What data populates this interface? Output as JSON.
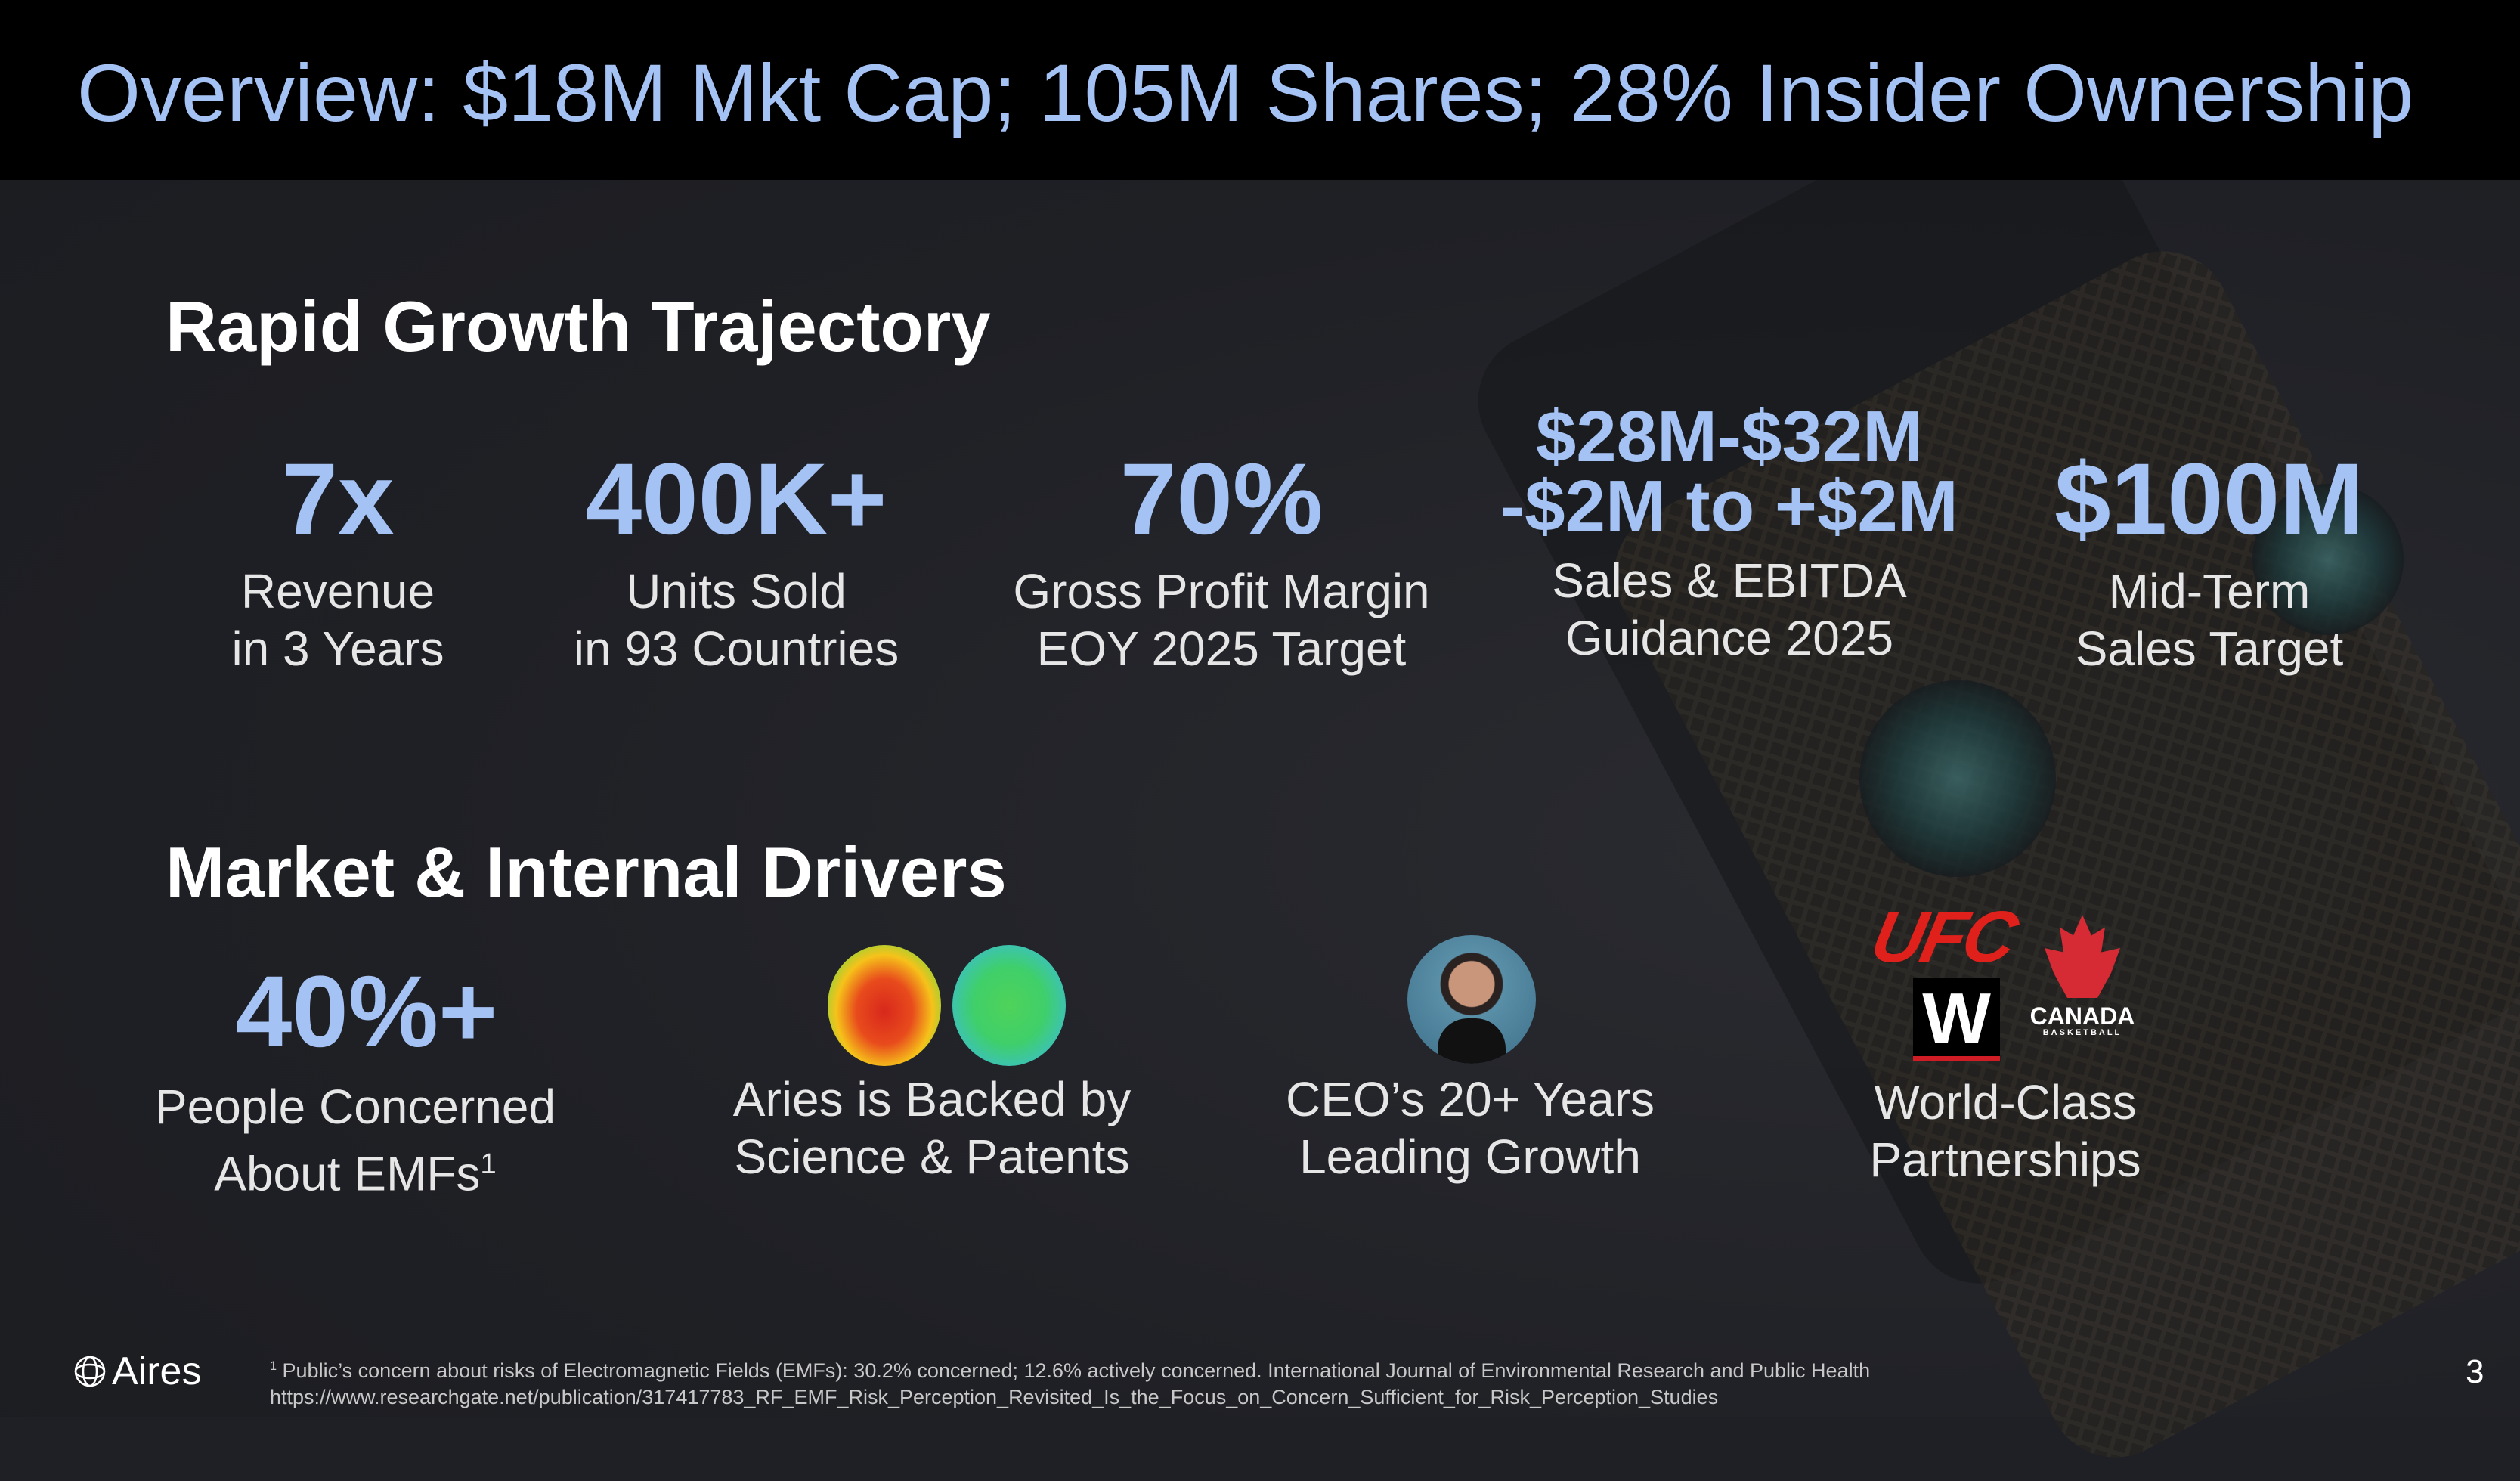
{
  "title": "Overview: $18M Mkt Cap; 105M Shares; 28% Insider Ownership",
  "growth": {
    "heading": "Rapid Growth Trajectory",
    "stats": [
      {
        "value": "7x",
        "line1": "Revenue",
        "line2": "in 3 Years"
      },
      {
        "value": "400K+",
        "line1": "Units Sold",
        "line2": "in 93 Countries"
      },
      {
        "value": "70%",
        "line1": "Gross Profit Margin",
        "line2": "EOY 2025 Target"
      },
      {
        "value": "$28M-$32M",
        "value2": "-$2M to +$2M",
        "line1": "Sales & EBITDA",
        "line2": "Guidance 2025"
      },
      {
        "value": "$100M",
        "line1": "Mid-Term",
        "line2": "Sales Target"
      }
    ]
  },
  "drivers": {
    "heading": "Market & Internal Drivers",
    "items": [
      {
        "value": "40%+",
        "line1": "People Concerned",
        "line2": "About EMFs",
        "sup": "1"
      },
      {
        "line1": "Aries is Backed by",
        "line2": "Science & Patents"
      },
      {
        "line1": "CEO’s 20+ Years",
        "line2": "Leading Growth"
      },
      {
        "line1": "World-Class",
        "line2": "Partnerships"
      }
    ],
    "partner_logos": {
      "ufc": "UFC",
      "canada": "CANADA",
      "canada_sub": "BASKETBALL",
      "wwe": "W"
    }
  },
  "footer": {
    "brand": "Aires",
    "footnote_mark": "1",
    "footnote": "Public’s concern about risks of Electromagnetic Fields (EMFs): 30.2% concerned; 12.6% actively concerned. International Journal of Environmental Research and Public Health",
    "url": "https://www.researchgate.net/publication/317417783_RF_EMF_Risk_Perception_Revisited_Is_the_Focus_on_Concern_Sufficient_for_Risk_Perception_Studies",
    "page": "3"
  },
  "colors": {
    "accent": "#a4c2f4",
    "background": "#1f2025",
    "title_bar": "#000000",
    "ufc_red": "#e0201b"
  }
}
